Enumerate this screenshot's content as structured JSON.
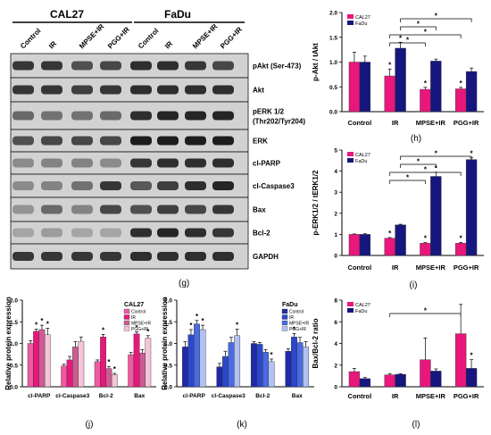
{
  "colors": {
    "cal27": "#e8177c",
    "fadu": "#16167e",
    "cal27_shades": [
      "#f05aa0",
      "#e8177c",
      "#cc5c92",
      "#f4c4d8"
    ],
    "fadu_shades": [
      "#1f2aa8",
      "#2c47c8",
      "#4a6ae0",
      "#b2c0f2"
    ]
  },
  "blot": {
    "groups": [
      "CAL27",
      "FaDu"
    ],
    "lanes": [
      "Control",
      "IR",
      "MPSE+IR",
      "PGG+IR",
      "Control",
      "IR",
      "MPSE+IR",
      "PGG+IR"
    ],
    "proteins": [
      "pAkt (Ser-473)",
      "Akt",
      "pERK 1/2",
      "(Thr202/Tyr204)",
      "ERK",
      "cl-PARP",
      "cl-Caspase3",
      "Bax",
      "Bcl-2",
      "GAPDH"
    ],
    "panel_label": "(g)"
  },
  "chart_data": [
    {
      "id": "h",
      "type": "bar",
      "panel_label": "(h)",
      "ylabel": "p-Akt / tAkt",
      "categories": [
        "Control",
        "IR",
        "MPSE+IR",
        "PGG+IR"
      ],
      "series": [
        {
          "name": "CAL27",
          "values": [
            1.0,
            0.72,
            0.45,
            0.46
          ],
          "err": [
            0.2,
            0.14,
            0.04,
            0.03
          ]
        },
        {
          "name": "FaDu",
          "values": [
            1.0,
            1.28,
            1.02,
            0.81
          ],
          "err": [
            0.12,
            0.12,
            0.04,
            0.07
          ]
        }
      ],
      "ylim": [
        0,
        2.0
      ],
      "yticks": [
        0.0,
        0.5,
        1.0,
        1.5,
        2.0
      ],
      "ytick_labels": [
        "0.0",
        "0.5",
        "1.0",
        "1.5",
        "2.0"
      ],
      "legend": [
        "CAL27",
        "FaDu"
      ],
      "legend_position": "top-left",
      "significance": [
        [
          "IR",
          "MPSE+IR"
        ],
        [
          "IR",
          "PGG+IR"
        ],
        [
          "IR",
          "MPSE+IR"
        ],
        [
          "IR",
          "PGG+IR"
        ]
      ]
    },
    {
      "id": "i",
      "type": "bar",
      "panel_label": "(i)",
      "ylabel": "p-ERK1/2 / tERK1/2",
      "categories": [
        "Control",
        "IR",
        "MPSE+IR",
        "PGG+IR"
      ],
      "series": [
        {
          "name": "CAL27",
          "values": [
            1.0,
            0.82,
            0.58,
            0.58
          ],
          "err": [
            0.02,
            0.03,
            0.03,
            0.04
          ]
        },
        {
          "name": "FaDu",
          "values": [
            1.0,
            1.45,
            3.75,
            4.55
          ],
          "err": [
            0.03,
            0.03,
            0.2,
            0.08
          ]
        }
      ],
      "ylim": [
        0,
        5
      ],
      "yticks": [
        0,
        1,
        2,
        3,
        4,
        5
      ],
      "ytick_labels": [
        "0",
        "1",
        "2",
        "3",
        "4",
        "5"
      ],
      "legend": [
        "CAL27",
        "FaDu"
      ],
      "legend_position": "top-left",
      "significance": [
        [
          "IR",
          "MPSE+IR"
        ],
        [
          "IR",
          "PGG+IR"
        ],
        [
          "IR",
          "MPSE+IR"
        ],
        [
          "IR",
          "PGG+IR"
        ]
      ]
    },
    {
      "id": "j",
      "type": "bar",
      "panel_label": "(j)",
      "ylabel": "Relative protein expression",
      "legend_title": "CAL27",
      "legend": [
        "Control",
        "IR",
        "MPSE+IR",
        "PGG+IR"
      ],
      "legend_position": "top-right",
      "categories": [
        "cl-PARP",
        "cl-Caspase3",
        "Bcl-2",
        "Bax"
      ],
      "series": [
        {
          "name": "Control",
          "values": [
            1.0,
            0.48,
            0.58,
            0.74
          ],
          "err": [
            0.06,
            0.04,
            0.04,
            0.05
          ]
        },
        {
          "name": "IR",
          "values": [
            1.28,
            0.62,
            1.15,
            1.22
          ],
          "err": [
            0.05,
            0.08,
            0.06,
            0.05
          ]
        },
        {
          "name": "MPSE+IR",
          "values": [
            1.32,
            0.92,
            0.42,
            0.78
          ],
          "err": [
            0.1,
            0.12,
            0.05,
            0.08
          ]
        },
        {
          "name": "PGG+IR",
          "values": [
            1.2,
            1.05,
            0.28,
            1.12
          ],
          "err": [
            0.15,
            0.1,
            0.03,
            0.06
          ]
        }
      ],
      "ylim": [
        0,
        2.0
      ],
      "yticks": [
        0.0,
        0.5,
        1.0,
        1.5,
        2.0
      ],
      "ytick_labels": [
        "0.0",
        "0.5",
        "1.0",
        "1.5",
        "2.0"
      ]
    },
    {
      "id": "k",
      "type": "bar",
      "panel_label": "(k)",
      "ylabel": "Relative protein expression",
      "legend_title": "FaDu",
      "legend": [
        "Control",
        "IR",
        "MPSE+IR",
        "PGG+IR"
      ],
      "legend_position": "top-right",
      "categories": [
        "cl-PARP",
        "cl-Caspase3",
        "Bcl-2",
        "Bax"
      ],
      "series": [
        {
          "name": "Control",
          "values": [
            0.92,
            0.46,
            1.0,
            0.82
          ],
          "err": [
            0.12,
            0.08,
            0.04,
            0.06
          ]
        },
        {
          "name": "IR",
          "values": [
            1.2,
            0.7,
            0.98,
            1.15
          ],
          "err": [
            0.12,
            0.12,
            0.04,
            0.08
          ]
        },
        {
          "name": "MPSE+IR",
          "values": [
            1.45,
            1.02,
            0.8,
            1.02
          ],
          "err": [
            0.08,
            0.12,
            0.06,
            0.12
          ]
        },
        {
          "name": "PGG+IR",
          "values": [
            1.32,
            1.18,
            0.58,
            0.92
          ],
          "err": [
            0.1,
            0.15,
            0.06,
            0.12
          ]
        }
      ],
      "ylim": [
        0,
        2.0
      ],
      "yticks": [
        0.0,
        0.5,
        1.0,
        1.5,
        2.0
      ],
      "ytick_labels": [
        "0.0",
        "0.5",
        "1.0",
        "1.5",
        "2.0"
      ]
    },
    {
      "id": "l",
      "type": "bar",
      "panel_label": "(l)",
      "ylabel": "Bax/Bcl-2 ratio",
      "categories": [
        "Control",
        "IR",
        "MPSE+IR",
        "PGG+IR"
      ],
      "series": [
        {
          "name": "CAL27",
          "values": [
            1.4,
            1.1,
            2.5,
            4.9
          ],
          "err": [
            0.3,
            0.1,
            2.0,
            2.7
          ]
        },
        {
          "name": "FaDu",
          "values": [
            0.75,
            1.15,
            1.45,
            1.7
          ],
          "err": [
            0.1,
            0.05,
            0.2,
            0.8
          ]
        }
      ],
      "ylim": [
        0,
        8
      ],
      "yticks": [
        0,
        2,
        4,
        6,
        8
      ],
      "ytick_labels": [
        "0",
        "2",
        "4",
        "6",
        "8"
      ],
      "legend": [
        "CAL27",
        "FaDu"
      ],
      "legend_position": "top-left",
      "significance": [
        [
          "IR",
          "PGG+IR"
        ]
      ]
    }
  ]
}
